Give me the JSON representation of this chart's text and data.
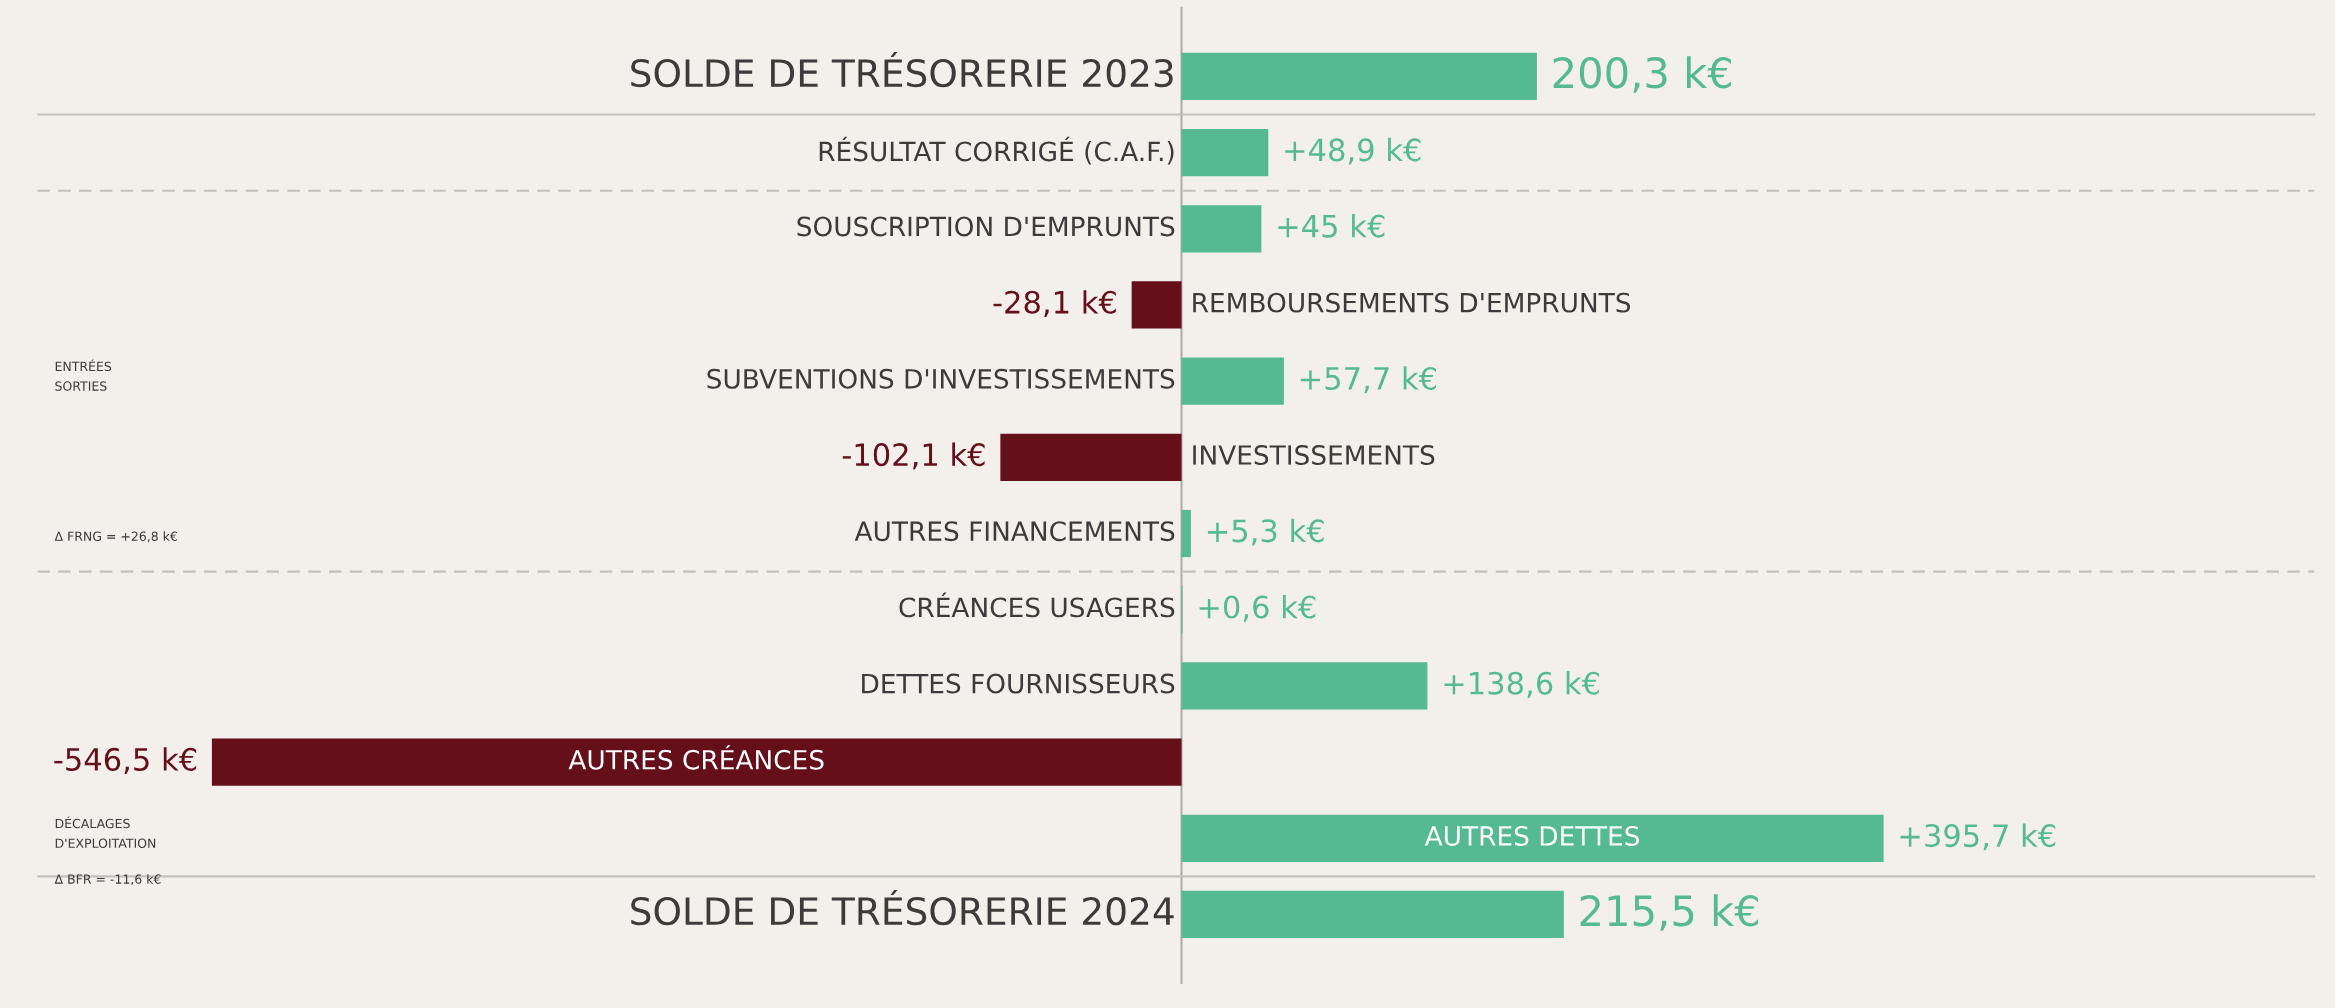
{
  "chart_data": {
    "type": "bar",
    "orientation": "horizontal",
    "categories": [
      "SOLDE DE TRÉSORERIE 2023",
      "RÉSULTAT CORRIGÉ (C.A.F.)",
      "SOUSCRIPTION D'EMPRUNTS",
      "REMBOURSEMENTS D'EMPRUNTS",
      "SUBVENTIONS D'INVESTISSEMENTS",
      "INVESTISSEMENTS",
      "AUTRES FINANCEMENTS",
      "CRÉANCES USAGERS",
      "DETTES FOURNISSEURS",
      "AUTRES CRÉANCES",
      "AUTRES DETTES",
      "SOLDE DE TRÉSORERIE 2024"
    ],
    "values": [
      200.3,
      48.9,
      45,
      -28.1,
      57.7,
      -102.1,
      5.3,
      0.6,
      138.6,
      -546.5,
      395.7,
      215.5
    ],
    "colors": [
      "#55ba92",
      "#55ba92",
      "#55ba92",
      "#650f1a",
      "#55ba92",
      "#650f1a",
      "#55ba92",
      "#55ba92",
      "#55ba92",
      "#650f1a",
      "#55ba92",
      "#55ba92"
    ],
    "value_labels": [
      "200,3 k€",
      "+48,9 k€",
      "+45 k€",
      "-28,1 k€",
      "+57,7 k€",
      "-102,1 k€",
      "+5,3 k€",
      "+0,6 k€",
      "+138,6 k€",
      "-546,5 k€",
      "+395,7 k€",
      "215,5 k€"
    ],
    "annotations": [
      "ENTRÉES\nSORTIES",
      "Δ FRNG = +26,8 k€",
      "DÉCALAGES\nD'EXPLOITATION",
      "Δ BFR = -11,6 k€"
    ],
    "legend": false
  }
}
